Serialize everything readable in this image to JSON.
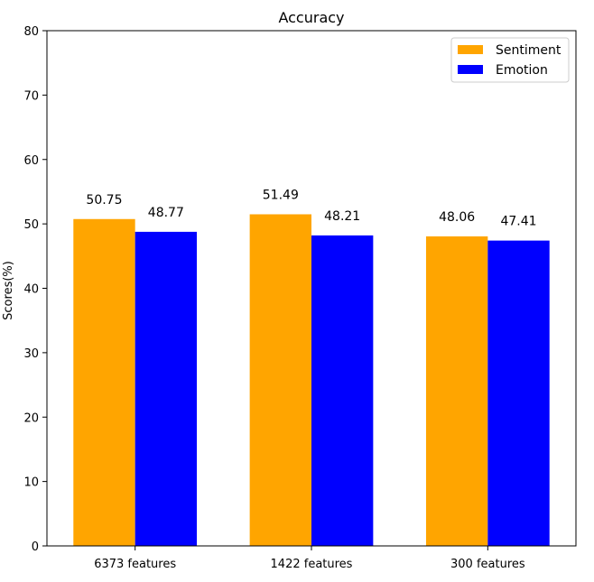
{
  "chart_data": {
    "type": "bar",
    "title": "Accuracy",
    "xlabel": "",
    "ylabel": "Scores(%)",
    "ylim": [
      0,
      80
    ],
    "yticks": [
      0,
      10,
      20,
      30,
      40,
      50,
      60,
      70,
      80
    ],
    "categories": [
      "6373 features",
      "1422 features",
      "300 features"
    ],
    "series": [
      {
        "name": "Sentiment",
        "color": "#ffa500",
        "values": [
          50.75,
          51.49,
          48.06
        ],
        "labels": [
          "50.75",
          "51.49",
          "48.06"
        ]
      },
      {
        "name": "Emotion",
        "color": "#0000ff",
        "values": [
          48.77,
          48.21,
          47.41
        ],
        "labels": [
          "48.77",
          "48.21",
          "47.41"
        ]
      }
    ],
    "legend": "top-right",
    "grid": false
  }
}
